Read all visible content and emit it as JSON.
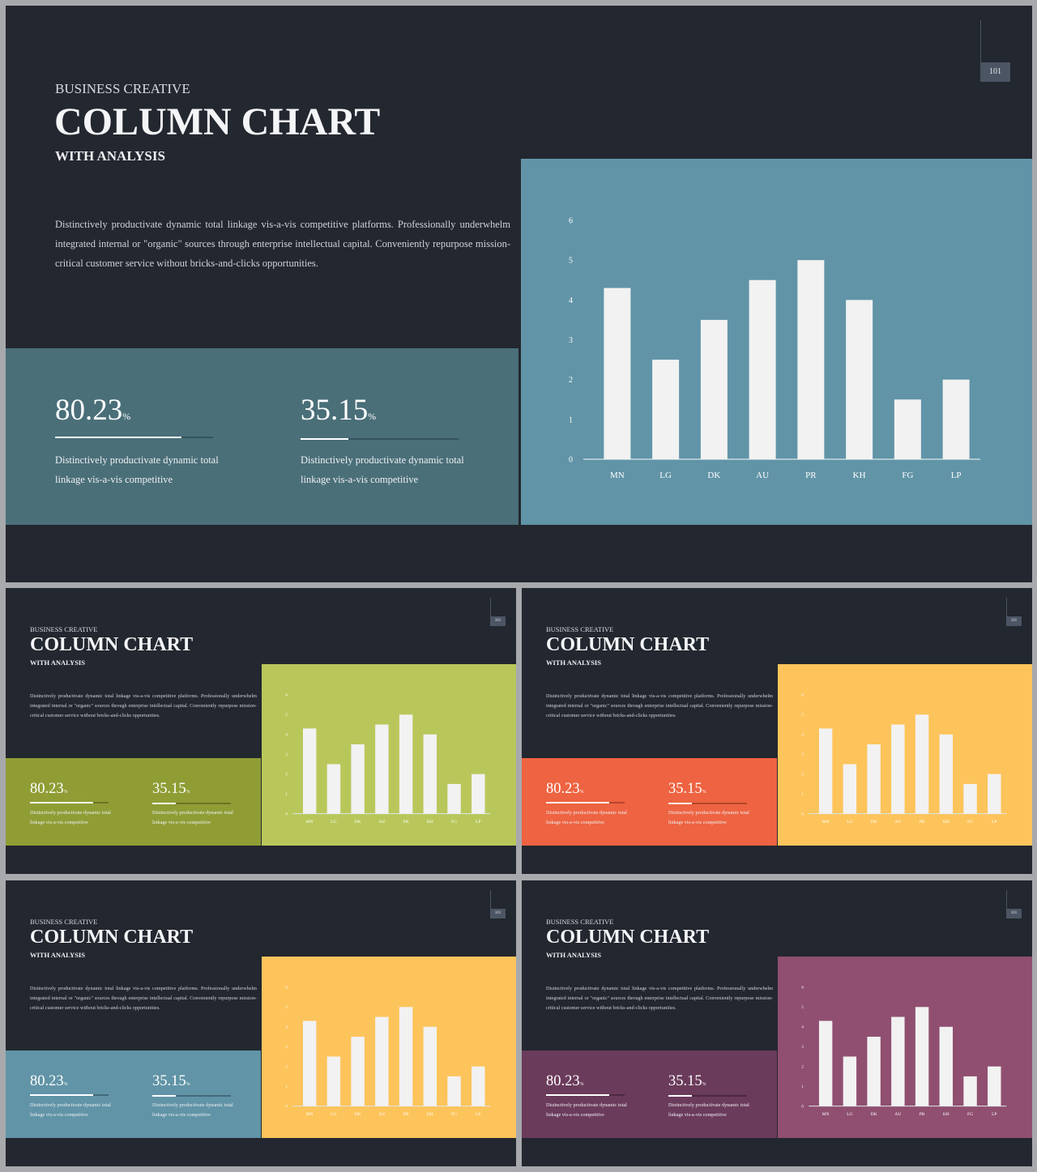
{
  "slides": [
    {
      "page_number": "101",
      "eyebrow": "BUSINESS CREATIVE",
      "title": "COLUMN CHART",
      "subtitle": "WITH ANALYSIS",
      "body": "Distinctively productivate dynamic total linkage vis-a-vis competitive platforms. Professionally underwhelm integrated internal or \"organic\" sources through enterprise intellectual capital. Conveniently repurpose mission-critical customer service without bricks-and-clicks opportunities.",
      "stats": [
        {
          "value": "80.23",
          "unit": "%",
          "progress": 0.8,
          "desc": "Distinctively productivate dynamic total linkage vis-a-vis competitive"
        },
        {
          "value": "35.15",
          "unit": "%",
          "progress": 0.3,
          "desc": "Distinctively productivate dynamic total linkage vis-a-vis competitive"
        }
      ],
      "colors": {
        "stats_panel": "#4a6f79",
        "chart_panel": "#6194a7",
        "track": "#35535c"
      }
    },
    {
      "page_number": "101",
      "eyebrow": "BUSINESS CREATIVE",
      "title": "COLUMN CHART",
      "subtitle": "WITH ANALYSIS",
      "body": "Distinctively productivate dynamic total linkage vis-a-vis competitive platforms. Professionally underwhelm integrated internal or \"organic\" sources through enterprise intellectual capital. Conveniently repurpose mission-critical customer service without bricks-and-clicks opportunities.",
      "stats": [
        {
          "value": "80.23",
          "unit": "%",
          "progress": 0.8,
          "desc": "Distinctively productivate dynamic total linkage vis-a-vis competitive"
        },
        {
          "value": "35.15",
          "unit": "%",
          "progress": 0.3,
          "desc": "Distinctively productivate dynamic total linkage vis-a-vis competitive"
        }
      ],
      "colors": {
        "stats_panel": "#909d35",
        "chart_panel": "#b9c75a",
        "track": "#6a7526"
      }
    },
    {
      "page_number": "101",
      "eyebrow": "BUSINESS CREATIVE",
      "title": "COLUMN CHART",
      "subtitle": "WITH ANALYSIS",
      "body": "Distinctively productivate dynamic total linkage vis-a-vis competitive platforms. Professionally underwhelm integrated internal or \"organic\" sources through enterprise intellectual capital. Conveniently repurpose mission-critical customer service without bricks-and-clicks opportunities.",
      "stats": [
        {
          "value": "80.23",
          "unit": "%",
          "progress": 0.8,
          "desc": "Distinctively productivate dynamic total linkage vis-a-vis competitive"
        },
        {
          "value": "35.15",
          "unit": "%",
          "progress": 0.3,
          "desc": "Distinctively productivate dynamic total linkage vis-a-vis competitive"
        }
      ],
      "colors": {
        "stats_panel": "#ee6341",
        "chart_panel": "#fdc45b",
        "track": "#b5452c"
      }
    },
    {
      "page_number": "101",
      "eyebrow": "BUSINESS CREATIVE",
      "title": "COLUMN CHART",
      "subtitle": "WITH ANALYSIS",
      "body": "Distinctively productivate dynamic total linkage vis-a-vis competitive platforms. Professionally underwhelm integrated internal or \"organic\" sources through enterprise intellectual capital. Conveniently repurpose mission-critical customer service without bricks-and-clicks opportunities.",
      "stats": [
        {
          "value": "80.23",
          "unit": "%",
          "progress": 0.8,
          "desc": "Distinctively productivate dynamic total linkage vis-a-vis competitive"
        },
        {
          "value": "35.15",
          "unit": "%",
          "progress": 0.3,
          "desc": "Distinctively productivate dynamic total linkage vis-a-vis competitive"
        }
      ],
      "colors": {
        "stats_panel": "#6194a7",
        "chart_panel": "#fdc45b",
        "track": "#436a79"
      }
    },
    {
      "page_number": "101",
      "eyebrow": "BUSINESS CREATIVE",
      "title": "COLUMN CHART",
      "subtitle": "WITH ANALYSIS",
      "body": "Distinctively productivate dynamic total linkage vis-a-vis competitive platforms. Professionally underwhelm integrated internal or \"organic\" sources through enterprise intellectual capital. Conveniently repurpose mission-critical customer service without bricks-and-clicks opportunities.",
      "stats": [
        {
          "value": "80.23",
          "unit": "%",
          "progress": 0.8,
          "desc": "Distinctively productivate dynamic total linkage vis-a-vis competitive"
        },
        {
          "value": "35.15",
          "unit": "%",
          "progress": 0.3,
          "desc": "Distinctively productivate dynamic total linkage vis-a-vis competitive"
        }
      ],
      "colors": {
        "stats_panel": "#6b3b5b",
        "chart_panel": "#904f70",
        "track": "#4c2941"
      }
    }
  ],
  "chart_data": {
    "type": "bar",
    "categories": [
      "MN",
      "LG",
      "DK",
      "AU",
      "PR",
      "KH",
      "FG",
      "LP"
    ],
    "values": [
      4.3,
      2.5,
      3.5,
      4.5,
      5.0,
      4.0,
      1.5,
      2.0
    ],
    "ylim": [
      0,
      6
    ],
    "yticks": [
      "0",
      "1",
      "2",
      "3",
      "4",
      "5",
      "6"
    ],
    "bar_color": "#f2f2f2",
    "axis_color": "#d9e6ec",
    "grid": false
  }
}
